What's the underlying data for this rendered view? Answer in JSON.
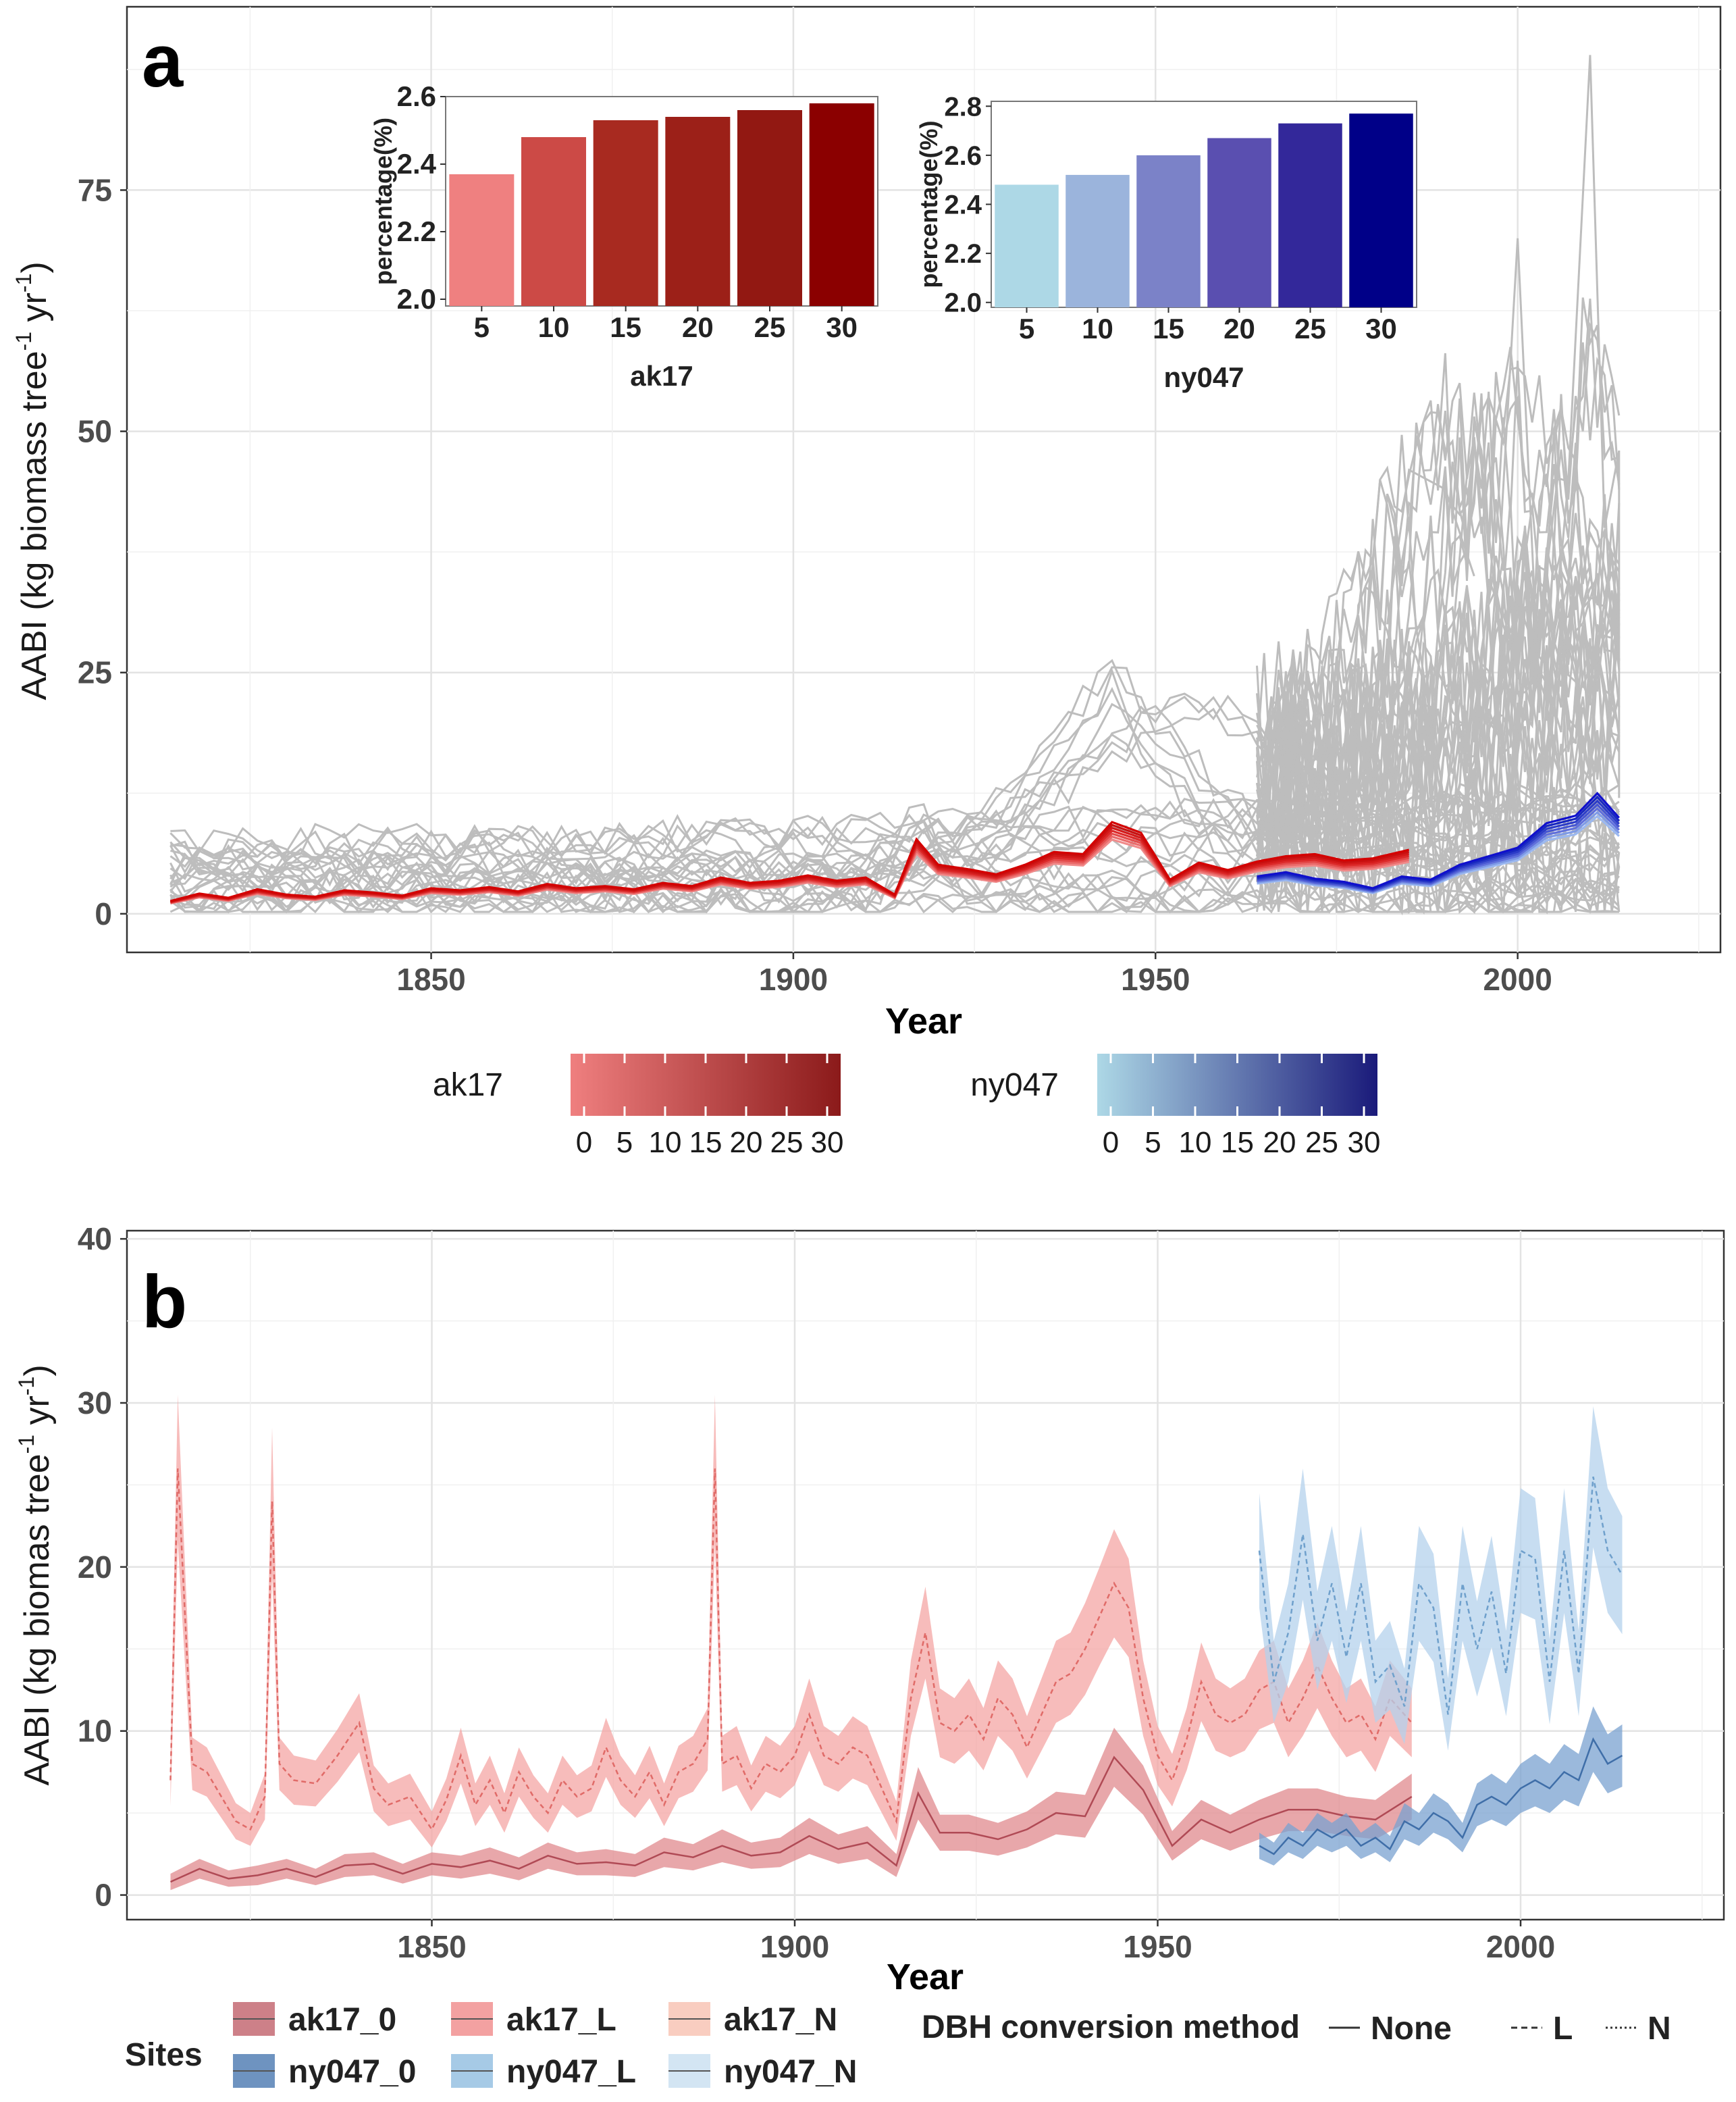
{
  "panel_a": {
    "letter": "a",
    "ylabel_main": "AABI (kg biomass tree",
    "ylabel_sup1": "-1",
    "ylabel_mid": " yr",
    "ylabel_sup2": "-1",
    "ylabel_end": ")",
    "xlabel": "Year",
    "legend": [
      {
        "name": "ak17",
        "ticks": [
          "0",
          "5",
          "10",
          "15",
          "20",
          "25",
          "30"
        ],
        "color_start": "#ef7f7f",
        "color_end": "#8b1a1a"
      },
      {
        "name": "ny047",
        "ticks": [
          "0",
          "5",
          "10",
          "15",
          "20",
          "25",
          "30"
        ],
        "color_start": "#add8e6",
        "color_end": "#1a1a7a"
      }
    ]
  },
  "panel_b": {
    "letter": "b",
    "ylabel_main": "AABI (kg biomas tree",
    "ylabel_sup1": "-1",
    "ylabel_mid": " yr",
    "ylabel_sup2": "-1",
    "ylabel_end": ")",
    "xlabel": "Year",
    "legend": {
      "sites_title": "Sites",
      "method_title": "DBH conversion method",
      "sites": [
        {
          "label": "ak17_0",
          "color": "#c0606a"
        },
        {
          "label": "ak17_L",
          "color": "#f08a8a"
        },
        {
          "label": "ak17_N",
          "color": "#f8c0b0"
        },
        {
          "label": "ny047_0",
          "color": "#4a78b0"
        },
        {
          "label": "ny047_L",
          "color": "#90bde0"
        },
        {
          "label": "ny047_N",
          "color": "#c8def0"
        }
      ],
      "methods": [
        {
          "label": "None",
          "dash": "solid"
        },
        {
          "label": "L",
          "dash": "dashed"
        },
        {
          "label": "N",
          "dash": "dotted"
        }
      ]
    }
  },
  "chart_data": [
    {
      "id": "a-main",
      "type": "line",
      "title": "",
      "xlabel": "Year",
      "ylabel": "AABI (kg biomass tree-1 yr-1)",
      "xlim": [
        1808,
        2028
      ],
      "ylim": [
        -4,
        94
      ],
      "xticks": [
        1850,
        1900,
        1950,
        2000
      ],
      "yticks": [
        0,
        25,
        50,
        75
      ],
      "grid": true,
      "series": [
        {
          "name": "ak17",
          "color": "#e01010",
          "x": [
            1814,
            1818,
            1822,
            1826,
            1830,
            1834,
            1838,
            1842,
            1846,
            1850,
            1854,
            1858,
            1862,
            1866,
            1870,
            1874,
            1878,
            1882,
            1886,
            1890,
            1894,
            1898,
            1902,
            1906,
            1910,
            1914,
            1917,
            1920,
            1924,
            1928,
            1932,
            1936,
            1940,
            1944,
            1948,
            1952,
            1956,
            1960,
            1964,
            1968,
            1972,
            1976,
            1980,
            1985
          ],
          "y": [
            1.2,
            1.9,
            1.5,
            2.3,
            1.8,
            1.6,
            2.2,
            2.0,
            1.7,
            2.4,
            2.2,
            2.5,
            2.1,
            2.8,
            2.4,
            2.6,
            2.3,
            2.9,
            2.6,
            3.4,
            2.9,
            3.1,
            3.6,
            3.1,
            3.4,
            1.8,
            7.0,
            4.6,
            4.2,
            3.7,
            4.6,
            5.8,
            5.6,
            8.6,
            7.6,
            3.2,
            4.8,
            4.1,
            4.9,
            5.4,
            5.6,
            5.0,
            5.2,
            6.0
          ]
        },
        {
          "name": "ny047",
          "color": "#1a1acc",
          "x": [
            1964,
            1968,
            1972,
            1976,
            1980,
            1984,
            1988,
            1992,
            1996,
            2000,
            2004,
            2008,
            2011,
            2014
          ],
          "y": [
            3.5,
            3.9,
            3.3,
            3.0,
            2.4,
            3.5,
            3.2,
            4.6,
            5.4,
            6.2,
            8.5,
            9.2,
            11.3,
            9.0
          ]
        }
      ]
    },
    {
      "id": "a-inset-ak17",
      "type": "bar",
      "title": "ak17",
      "xlabel": "ak17",
      "ylabel": "percentage(%)",
      "categories": [
        "5",
        "10",
        "15",
        "20",
        "25",
        "30"
      ],
      "values": [
        2.37,
        2.48,
        2.53,
        2.54,
        2.56,
        2.58
      ],
      "ylim": [
        1.98,
        2.6
      ],
      "yticks": [
        "2.0",
        "2.2",
        "2.4",
        "2.6"
      ],
      "colors": [
        "#ef8080",
        "#cc4a46",
        "#a82a20",
        "#9c2018",
        "#921812",
        "#8b0000"
      ]
    },
    {
      "id": "a-inset-ny047",
      "type": "bar",
      "title": "ny047",
      "xlabel": "ny047",
      "ylabel": "percentage(%)",
      "categories": [
        "5",
        "10",
        "15",
        "20",
        "25",
        "30"
      ],
      "values": [
        2.48,
        2.52,
        2.6,
        2.67,
        2.73,
        2.77
      ],
      "ylim": [
        1.98,
        2.82
      ],
      "yticks": [
        "2.0",
        "2.2",
        "2.4",
        "2.6",
        "2.8"
      ],
      "colors": [
        "#add8e6",
        "#9bb4dc",
        "#7b82c8",
        "#5a4fb0",
        "#33289a",
        "#000088"
      ]
    },
    {
      "id": "b-main",
      "type": "area",
      "title": "",
      "xlabel": "Year",
      "ylabel": "AABI (kg biomas tree-1 yr-1)",
      "xlim": [
        1808,
        2028
      ],
      "ylim": [
        -1.5,
        40.5
      ],
      "xticks": [
        1850,
        1900,
        1950,
        2000
      ],
      "yticks": [
        0,
        10,
        20,
        30,
        40
      ],
      "grid": true,
      "series": [
        {
          "name": "ak17_L",
          "color": "#f08a8a",
          "dash": "dashed",
          "x": [
            1814,
            1815,
            1817,
            1819,
            1821,
            1823,
            1825,
            1827,
            1828,
            1829,
            1831,
            1834,
            1837,
            1840,
            1842,
            1844,
            1847,
            1850,
            1852,
            1854,
            1856,
            1858,
            1860,
            1862,
            1864,
            1866,
            1868,
            1870,
            1872,
            1874,
            1876,
            1878,
            1880,
            1882,
            1884,
            1886,
            1888,
            1889,
            1890,
            1892,
            1894,
            1896,
            1898,
            1900,
            1902,
            1904,
            1906,
            1908,
            1910,
            1912,
            1914,
            1916,
            1918,
            1920,
            1922,
            1924,
            1926,
            1928,
            1930,
            1932,
            1934,
            1936,
            1938,
            1940,
            1942,
            1944,
            1946,
            1948,
            1950,
            1952,
            1954,
            1956,
            1958,
            1960,
            1962,
            1964,
            1966,
            1968,
            1970,
            1972,
            1974,
            1976,
            1978,
            1980,
            1982,
            1985
          ],
          "y": [
            7.0,
            26.0,
            8.0,
            7.5,
            6.0,
            4.5,
            4.0,
            6.0,
            24.0,
            8.0,
            7.0,
            6.8,
            8.5,
            10.5,
            6.5,
            5.5,
            6.0,
            4.0,
            5.8,
            8.5,
            5.5,
            7.0,
            5.0,
            7.5,
            6.0,
            5.0,
            7.0,
            6.0,
            6.5,
            9.0,
            7.0,
            6.0,
            7.5,
            5.5,
            7.5,
            8.0,
            9.5,
            26.0,
            8.0,
            8.5,
            6.5,
            8.0,
            7.5,
            8.5,
            11.0,
            8.5,
            8.0,
            9.0,
            8.5,
            6.5,
            4.5,
            12.0,
            16.0,
            10.5,
            10.0,
            11.0,
            9.5,
            12.0,
            11.0,
            9.0,
            11.0,
            13.0,
            13.5,
            15.0,
            17.0,
            19.0,
            17.5,
            12.0,
            8.5,
            7.0,
            9.5,
            13.0,
            11.0,
            10.5,
            11.0,
            12.5,
            13.0,
            10.5,
            12.0,
            14.0,
            12.0,
            10.5,
            11.0,
            9.5,
            12.0,
            10.5
          ],
          "w": [
            1.6,
            4.5,
            1.6,
            1.5,
            1.3,
            1.1,
            1.0,
            1.4,
            4.5,
            1.6,
            1.5,
            1.4,
            1.6,
            1.8,
            1.4,
            1.3,
            1.4,
            1.1,
            1.3,
            1.7,
            1.3,
            1.5,
            1.2,
            1.5,
            1.3,
            1.2,
            1.5,
            1.3,
            1.4,
            1.8,
            1.5,
            1.3,
            1.6,
            1.3,
            1.6,
            1.7,
            1.9,
            4.5,
            1.7,
            1.8,
            1.4,
            1.7,
            1.6,
            1.8,
            2.2,
            1.8,
            1.7,
            1.9,
            1.8,
            1.5,
            1.2,
            2.3,
            2.8,
            2.1,
            2.0,
            2.2,
            1.9,
            2.3,
            2.2,
            1.9,
            2.2,
            2.5,
            2.5,
            2.8,
            3.0,
            3.3,
            3.0,
            2.3,
            1.8,
            1.6,
            1.9,
            2.4,
            2.2,
            2.1,
            2.2,
            2.4,
            2.5,
            2.1,
            2.3,
            2.6,
            2.3,
            2.1,
            2.2,
            2.0,
            2.3,
            2.1
          ]
        },
        {
          "name": "ak17_0",
          "color": "#c0606a",
          "dash": "solid",
          "x": [
            1814,
            1818,
            1822,
            1826,
            1830,
            1834,
            1838,
            1842,
            1846,
            1850,
            1854,
            1858,
            1862,
            1866,
            1870,
            1874,
            1878,
            1882,
            1886,
            1890,
            1894,
            1898,
            1902,
            1906,
            1910,
            1914,
            1917,
            1920,
            1924,
            1928,
            1932,
            1936,
            1940,
            1944,
            1948,
            1952,
            1956,
            1960,
            1964,
            1968,
            1972,
            1976,
            1980,
            1985
          ],
          "y": [
            0.8,
            1.6,
            1.0,
            1.2,
            1.6,
            1.1,
            1.8,
            1.9,
            1.3,
            1.9,
            1.7,
            2.1,
            1.6,
            2.4,
            1.9,
            2.0,
            1.8,
            2.6,
            2.3,
            3.0,
            2.4,
            2.6,
            3.6,
            2.8,
            3.2,
            1.8,
            6.2,
            3.8,
            3.8,
            3.4,
            4.0,
            5.0,
            4.8,
            8.4,
            6.4,
            3.0,
            4.6,
            3.8,
            4.6,
            5.2,
            5.2,
            4.8,
            4.6,
            6.0
          ],
          "w": [
            0.5,
            0.6,
            0.5,
            0.6,
            0.6,
            0.5,
            0.7,
            0.7,
            0.6,
            0.7,
            0.7,
            0.8,
            0.7,
            0.8,
            0.7,
            0.8,
            0.7,
            0.9,
            0.8,
            1.0,
            0.8,
            0.9,
            1.1,
            0.9,
            1.0,
            0.7,
            1.6,
            1.1,
            1.1,
            1.0,
            1.1,
            1.3,
            1.3,
            1.8,
            1.5,
            0.9,
            1.2,
            1.1,
            1.2,
            1.3,
            1.3,
            1.2,
            1.2,
            1.4
          ]
        },
        {
          "name": "ny047_L",
          "color": "#90bde0",
          "dash": "dashed",
          "x": [
            1964,
            1966,
            1968,
            1970,
            1972,
            1974,
            1976,
            1978,
            1980,
            1982,
            1984,
            1986,
            1988,
            1990,
            1992,
            1994,
            1996,
            1998,
            2000,
            2002,
            2004,
            2006,
            2008,
            2010,
            2012,
            2014
          ],
          "y": [
            21.0,
            13.0,
            16.0,
            22.0,
            15.5,
            19.0,
            14.5,
            19.0,
            13.0,
            14.0,
            11.5,
            19.0,
            17.5,
            11.0,
            19.0,
            15.0,
            18.5,
            13.5,
            21.0,
            20.5,
            13.0,
            21.0,
            13.5,
            25.5,
            21.0,
            19.5
          ],
          "w": [
            3.5,
            2.5,
            3.0,
            4.0,
            3.0,
            3.5,
            2.8,
            3.5,
            2.5,
            2.7,
            2.3,
            3.5,
            3.3,
            2.2,
            3.5,
            2.9,
            3.4,
            2.6,
            3.8,
            3.7,
            2.6,
            3.8,
            2.6,
            4.3,
            3.8,
            3.6
          ]
        },
        {
          "name": "ny047_0",
          "color": "#4a78b0",
          "dash": "solid",
          "x": [
            1964,
            1966,
            1968,
            1970,
            1972,
            1974,
            1976,
            1978,
            1980,
            1982,
            1984,
            1986,
            1988,
            1990,
            1992,
            1994,
            1996,
            1998,
            2000,
            2002,
            2004,
            2006,
            2008,
            2010,
            2012,
            2014
          ],
          "y": [
            3.0,
            2.5,
            3.5,
            3.0,
            4.0,
            3.5,
            4.0,
            3.0,
            3.5,
            2.8,
            4.5,
            4.0,
            5.0,
            4.5,
            3.5,
            5.5,
            6.0,
            5.5,
            6.5,
            7.0,
            6.5,
            7.5,
            7.0,
            9.5,
            8.0,
            8.5
          ],
          "w": [
            0.8,
            0.7,
            0.9,
            0.8,
            1.0,
            0.9,
            1.0,
            0.8,
            0.9,
            0.8,
            1.1,
            1.0,
            1.2,
            1.1,
            0.9,
            1.3,
            1.4,
            1.3,
            1.5,
            1.6,
            1.5,
            1.7,
            1.6,
            2.0,
            1.8,
            1.9
          ]
        }
      ]
    }
  ]
}
